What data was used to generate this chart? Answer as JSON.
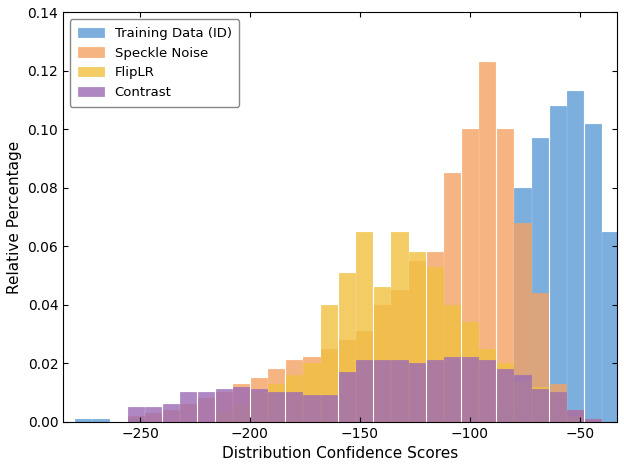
{
  "title": "",
  "xlabel": "Distribution Confidence Scores",
  "ylabel": "Relative Percentage",
  "xlim": [
    -285,
    -33
  ],
  "ylim": [
    0,
    0.14
  ],
  "yticks": [
    0,
    0.02,
    0.04,
    0.06,
    0.08,
    0.1,
    0.12,
    0.14
  ],
  "xticks": [
    -250,
    -200,
    -150,
    -100,
    -50
  ],
  "bin_width": 7.5,
  "colors": {
    "training": "#5B9BD5",
    "speckle": "#F4A263",
    "fliplr": "#F0C040",
    "contrast": "#9B6BB5"
  },
  "legend_labels": [
    "Training Data (ID)",
    "Speckle Noise",
    "FlipLR",
    "Contrast"
  ],
  "bin_centers": [
    -276,
    -268,
    -260,
    -252,
    -244,
    -236,
    -228,
    -220,
    -212,
    -204,
    -196,
    -188,
    -180,
    -172,
    -164,
    -156,
    -148,
    -140,
    -132,
    -124,
    -116,
    -108,
    -100,
    -92,
    -84,
    -76,
    -68,
    -60,
    -52,
    -44,
    -36
  ],
  "training_vals": [
    0.001,
    0.001,
    0.0,
    0.001,
    0.0,
    0.0,
    0.0,
    0.0,
    0.0,
    0.0,
    0.0,
    0.0,
    0.0,
    0.0,
    0.0,
    0.0,
    0.0,
    0.0,
    0.0,
    0.0,
    0.0,
    0.0,
    0.0,
    0.0,
    0.005,
    0.08,
    0.097,
    0.108,
    0.113,
    0.102,
    0.065
  ],
  "speckle_vals": [
    0.0,
    0.0,
    0.0,
    0.002,
    0.003,
    0.004,
    0.006,
    0.008,
    0.01,
    0.013,
    0.015,
    0.018,
    0.021,
    0.022,
    0.025,
    0.028,
    0.031,
    0.04,
    0.045,
    0.055,
    0.058,
    0.085,
    0.1,
    0.123,
    0.1,
    0.068,
    0.044,
    0.013,
    0.004,
    0.001,
    0.0
  ],
  "fliplr_vals": [
    0.0,
    0.0,
    0.0,
    0.0,
    0.0,
    0.0,
    0.0,
    0.0,
    0.003,
    0.006,
    0.01,
    0.013,
    0.016,
    0.02,
    0.04,
    0.051,
    0.065,
    0.046,
    0.065,
    0.058,
    0.053,
    0.04,
    0.034,
    0.025,
    0.02,
    0.014,
    0.012,
    0.01,
    0.002,
    0.0,
    0.0
  ],
  "contrast_vals": [
    0.0,
    0.0,
    0.0,
    0.005,
    0.005,
    0.006,
    0.01,
    0.01,
    0.011,
    0.012,
    0.011,
    0.01,
    0.01,
    0.009,
    0.009,
    0.017,
    0.021,
    0.021,
    0.021,
    0.02,
    0.021,
    0.022,
    0.022,
    0.021,
    0.018,
    0.016,
    0.011,
    0.01,
    0.004,
    0.001,
    0.0
  ]
}
